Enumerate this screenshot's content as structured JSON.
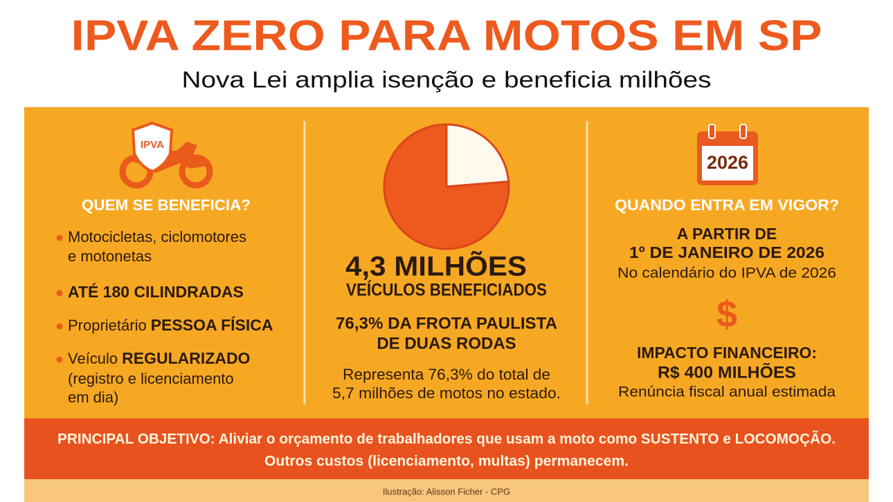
{
  "header": {
    "title": "IPVA ZERO PARA MOTOS EM SP",
    "subtitle": "Nova Lei amplia isenção e beneficia milhões"
  },
  "left": {
    "icon_label": "IPVA",
    "heading": "QUEM SE BENEFICIA?",
    "items": [
      {
        "lines": [
          "Motocicletas, ciclomotores",
          "e motonetas"
        ]
      },
      {
        "lines": [
          "ATÉ 180 CILINDRADAS"
        ]
      },
      {
        "text": "Proprietário",
        "emphasis": "PESSOA FÍSICA"
      },
      {
        "text": "Veículo",
        "emphasis": "REGULARIZADO",
        "note": [
          "(registro e licenciamento",
          "em dia)"
        ]
      }
    ]
  },
  "center": {
    "pie": {
      "values": [
        76.3,
        23.7
      ],
      "colors": [
        "#ee5a1e",
        "#fff8ec"
      ]
    },
    "headline": "4,3 MILHÕES",
    "headline_sub": "VEÍCULOS BENEFICIADOS",
    "share": [
      "76,3% DA FROTA PAULISTA",
      "DE DUAS RODAS"
    ],
    "note": [
      "Representa 76,3% do total de",
      "5,7 milhões de motos no estado."
    ]
  },
  "right": {
    "calendar_year": "2026",
    "heading": "QUANDO ENTRA EM VIGOR?",
    "start": [
      "A PARTIR DE",
      "1º DE JANEIRO DE 2026"
    ],
    "start_note": "No calendário do IPVA de 2026",
    "icon_symbol": "$",
    "impact": [
      "IMPACTO FINANCEIRO:",
      "R$ 400 MILHÕES"
    ],
    "impact_note": "Renúncia fiscal anual estimada"
  },
  "banner": {
    "lines": [
      "PRINCIPAL OBJETIVO: Aliviar o orçamento de trabalhadores que usam a moto como SUSTENTO e LOCOMOÇÃO.",
      "Outros custos (licenciamento, multas) permanecem."
    ]
  },
  "footer": {
    "credit": "Ilustração: Alisson Ficher - CPG"
  }
}
